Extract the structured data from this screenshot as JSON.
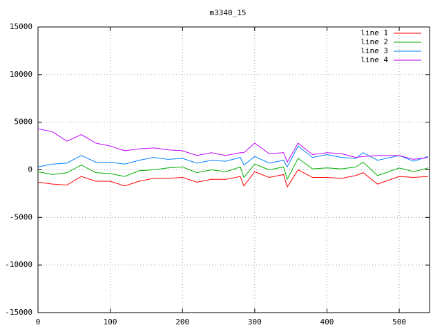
{
  "chart_data": {
    "type": "line",
    "title": "m3340_15",
    "x": [
      0,
      20,
      40,
      60,
      80,
      100,
      120,
      140,
      160,
      180,
      200,
      220,
      240,
      260,
      280,
      285,
      300,
      320,
      340,
      345,
      360,
      380,
      400,
      420,
      440,
      450,
      470,
      500,
      520,
      540
    ],
    "series": [
      {
        "name": "line 1",
        "color": "#ff0000",
        "values": [
          -1300,
          -1500,
          -1600,
          -700,
          -1200,
          -1200,
          -1700,
          -1200,
          -900,
          -900,
          -800,
          -1300,
          -1000,
          -1000,
          -700,
          -1700,
          -200,
          -800,
          -500,
          -1800,
          0,
          -800,
          -800,
          -900,
          -600,
          -300,
          -1500,
          -700,
          -800,
          -700
        ]
      },
      {
        "name": "line 2",
        "color": "#00b000",
        "values": [
          -200,
          -500,
          -300,
          500,
          -300,
          -400,
          -700,
          -100,
          0,
          200,
          300,
          -300,
          0,
          -200,
          300,
          -800,
          600,
          0,
          300,
          -1000,
          1200,
          100,
          200,
          100,
          300,
          800,
          -600,
          200,
          -200,
          200
        ]
      },
      {
        "name": "line 3",
        "color": "#0080ff",
        "values": [
          300,
          600,
          700,
          1500,
          800,
          800,
          600,
          1000,
          1300,
          1100,
          1200,
          700,
          1000,
          900,
          1300,
          500,
          1400,
          700,
          1000,
          300,
          2500,
          1300,
          1600,
          1300,
          1200,
          1800,
          1000,
          1500,
          900,
          1400
        ]
      },
      {
        "name": "line 4",
        "color": "#c000ff",
        "values": [
          4300,
          4000,
          3000,
          3700,
          2800,
          2500,
          2000,
          2200,
          2300,
          2100,
          2000,
          1500,
          1800,
          1500,
          1800,
          1800,
          2800,
          1700,
          1800,
          800,
          2800,
          1600,
          1800,
          1700,
          1300,
          1400,
          1500,
          1500,
          1100,
          1300
        ]
      }
    ],
    "xlim": [
      0,
      542
    ],
    "xticks": [
      0,
      100,
      200,
      300,
      400,
      500
    ],
    "ylim": [
      -15000,
      15000
    ],
    "yticks": [
      -15000,
      -10000,
      -5000,
      0,
      5000,
      10000,
      15000
    ],
    "grid": true,
    "legend": "top-right"
  }
}
